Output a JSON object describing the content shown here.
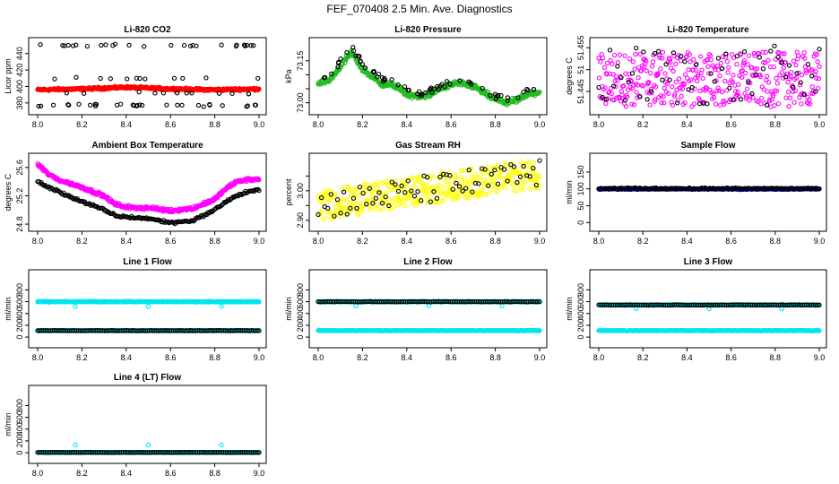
{
  "page_title": "FEF_070408  2.5 Min. Ave. Diagnostics",
  "colors": {
    "black": "#000000",
    "red": "#ff0000",
    "green": "#22bb22",
    "magenta": "#ff00ff",
    "yellow": "#ffff00",
    "blue": "#0000cc",
    "cyan": "#00e5ee"
  },
  "chart_data": [
    {
      "type": "scatter",
      "title": "Li-820 CO2",
      "ylabel": "Licor ppm",
      "xlim": [
        8.0,
        9.0
      ],
      "x_ticks": [
        "8.0",
        "8.2",
        "8.4",
        "8.6",
        "8.8",
        "9.0"
      ],
      "ylim": [
        370,
        455
      ],
      "y_ticks": [
        380,
        400,
        420,
        440
      ],
      "series": [
        {
          "color": "red",
          "pattern": "dense_smooth",
          "n": 420,
          "level": 397,
          "noise": 1.2,
          "points": [
            [
              8.0,
              396
            ],
            [
              8.2,
              397
            ],
            [
              8.4,
              399
            ],
            [
              8.6,
              397
            ],
            [
              8.8,
              396
            ],
            [
              9.0,
              397
            ]
          ]
        },
        {
          "color": "black",
          "pattern": "sparse_bands",
          "n": 80,
          "bands": [
            377,
            392,
            410,
            450
          ],
          "band_weights": [
            0.3,
            0.2,
            0.2,
            0.3
          ]
        }
      ]
    },
    {
      "type": "scatter",
      "title": "Li-820 Pressure",
      "ylabel": "kPa",
      "xlim": [
        8.0,
        9.0
      ],
      "x_ticks": [
        "8.0",
        "8.2",
        "8.4",
        "8.6",
        "8.8",
        "9.0"
      ],
      "ylim": [
        72.97,
        73.22
      ],
      "y_ticks": [
        73.0,
        73.05,
        73.1,
        73.15
      ],
      "y_tick_labels": [
        "73.00",
        "",
        "",
        "73.15"
      ],
      "series": [
        {
          "color": "green",
          "pattern": "dense_smooth",
          "n": 400,
          "noise": 0.008,
          "points": [
            [
              8.0,
              73.07
            ],
            [
              8.05,
              73.08
            ],
            [
              8.1,
              73.13
            ],
            [
              8.15,
              73.18
            ],
            [
              8.2,
              73.12
            ],
            [
              8.28,
              73.07
            ],
            [
              8.35,
              73.06
            ],
            [
              8.4,
              73.03
            ],
            [
              8.45,
              73.02
            ],
            [
              8.5,
              73.03
            ],
            [
              8.55,
              73.05
            ],
            [
              8.62,
              73.07
            ],
            [
              8.7,
              73.06
            ],
            [
              8.78,
              73.02
            ],
            [
              8.85,
              73.0
            ],
            [
              8.9,
              73.01
            ],
            [
              8.95,
              73.03
            ],
            [
              9.0,
              73.04
            ]
          ]
        },
        {
          "color": "black",
          "pattern": "sparse_follow",
          "n": 70,
          "noise": 0.01,
          "points": [
            [
              8.0,
              73.09
            ],
            [
              8.05,
              73.1
            ],
            [
              8.1,
              73.15
            ],
            [
              8.15,
              73.2
            ],
            [
              8.2,
              73.14
            ],
            [
              8.28,
              73.09
            ],
            [
              8.35,
              73.07
            ],
            [
              8.4,
              73.05
            ],
            [
              8.45,
              73.03
            ],
            [
              8.5,
              73.04
            ],
            [
              8.55,
              73.06
            ],
            [
              8.62,
              73.08
            ],
            [
              8.7,
              73.07
            ],
            [
              8.78,
              73.03
            ],
            [
              8.85,
              73.01
            ],
            [
              8.9,
              73.02
            ],
            [
              8.95,
              73.04
            ],
            [
              9.0,
              73.05
            ]
          ]
        }
      ]
    },
    {
      "type": "scatter",
      "title": "Li-820 Temperature",
      "ylabel": "degrees C",
      "xlim": [
        8.0,
        9.0
      ],
      "x_ticks": [
        "8.0",
        "8.2",
        "8.4",
        "8.6",
        "8.8",
        "9.0"
      ],
      "ylim": [
        51.4405,
        51.4565
      ],
      "y_ticks": [
        51.445,
        51.45,
        51.455
      ],
      "y_tick_labels": [
        "51.445",
        "51",
        "51.455"
      ],
      "series": [
        {
          "color": "magenta",
          "pattern": "band",
          "n": 380,
          "low": 51.4415,
          "high": 51.454
        },
        {
          "color": "black",
          "pattern": "band",
          "n": 60,
          "low": 51.4415,
          "high": 51.4555
        }
      ]
    },
    {
      "type": "scatter",
      "title": "Ambient Box Temperature",
      "ylabel": "degrees C",
      "xlim": [
        8.0,
        9.0
      ],
      "x_ticks": [
        "8.0",
        "8.2",
        "8.4",
        "8.6",
        "8.8",
        "9.0"
      ],
      "ylim": [
        24.75,
        25.75
      ],
      "y_ticks": [
        24.8,
        25.2,
        25.6
      ],
      "series": [
        {
          "color": "magenta",
          "pattern": "dense_smooth",
          "n": 380,
          "noise": 0.02,
          "points": [
            [
              8.0,
              25.65
            ],
            [
              8.05,
              25.5
            ],
            [
              8.1,
              25.42
            ],
            [
              8.2,
              25.32
            ],
            [
              8.3,
              25.2
            ],
            [
              8.35,
              25.08
            ],
            [
              8.4,
              25.04
            ],
            [
              8.5,
              25.03
            ],
            [
              8.6,
              24.99
            ],
            [
              8.7,
              25.02
            ],
            [
              8.8,
              25.15
            ],
            [
              8.85,
              25.3
            ],
            [
              8.9,
              25.4
            ],
            [
              8.95,
              25.43
            ],
            [
              9.0,
              25.43
            ]
          ]
        },
        {
          "color": "black",
          "pattern": "dense_smooth",
          "n": 180,
          "noise": 0.015,
          "points": [
            [
              8.0,
              25.4
            ],
            [
              8.05,
              25.32
            ],
            [
              8.1,
              25.25
            ],
            [
              8.2,
              25.12
            ],
            [
              8.3,
              25.0
            ],
            [
              8.35,
              24.92
            ],
            [
              8.4,
              24.9
            ],
            [
              8.5,
              24.88
            ],
            [
              8.6,
              24.82
            ],
            [
              8.7,
              24.85
            ],
            [
              8.8,
              25.0
            ],
            [
              8.85,
              25.12
            ],
            [
              8.9,
              25.2
            ],
            [
              8.95,
              25.26
            ],
            [
              9.0,
              25.28
            ]
          ]
        }
      ]
    },
    {
      "type": "scatter",
      "title": "Gas Stream RH",
      "ylabel": "percent",
      "xlim": [
        8.0,
        9.0
      ],
      "x_ticks": [
        "8.0",
        "8.2",
        "8.4",
        "8.6",
        "8.8",
        "9.0"
      ],
      "ylim": [
        2.875,
        3.115
      ],
      "y_ticks": [
        2.9,
        2.95,
        3.0,
        3.05
      ],
      "y_tick_labels": [
        "2.90",
        "",
        "3.00",
        ""
      ],
      "series": [
        {
          "color": "yellow",
          "pattern": "band_trend",
          "n": 420,
          "spread": 0.05,
          "points": [
            [
              8.0,
              2.95
            ],
            [
              9.0,
              3.06
            ]
          ]
        },
        {
          "color": "black",
          "pattern": "band_trend",
          "n": 70,
          "spread": 0.05,
          "points": [
            [
              8.0,
              2.95
            ],
            [
              9.0,
              3.06
            ]
          ]
        }
      ]
    },
    {
      "type": "scatter",
      "title": "Sample Flow",
      "ylabel": "ml/min",
      "xlim": [
        8.0,
        9.0
      ],
      "x_ticks": [
        "8.0",
        "8.2",
        "8.4",
        "8.6",
        "8.8",
        "9.0"
      ],
      "ylim": [
        -15,
        195
      ],
      "y_ticks": [
        0,
        50,
        100,
        150
      ],
      "series": [
        {
          "color": "blue",
          "pattern": "flat",
          "n": 420,
          "level": 100,
          "noise": 1.5
        },
        {
          "color": "black",
          "pattern": "flat",
          "n": 140,
          "level": 101,
          "noise": 2
        }
      ]
    },
    {
      "type": "scatter",
      "title": "Line 1 Flow",
      "ylabel": "ml/min",
      "xlim": [
        8.0,
        9.0
      ],
      "x_ticks": [
        "8.0",
        "8.2",
        "8.4",
        "8.6",
        "8.8",
        "9.0"
      ],
      "ylim": [
        -120,
        1080
      ],
      "y_ticks": [
        0,
        200,
        400,
        600,
        800
      ],
      "series": [
        {
          "color": "cyan",
          "pattern": "flat",
          "n": 400,
          "level": 600,
          "noise": 6,
          "spikes": [
            [
              8.17,
              520
            ],
            [
              8.5,
              520
            ],
            [
              8.83,
              520
            ]
          ]
        },
        {
          "color": "cyan",
          "pattern": "flat",
          "n": 400,
          "level": 110,
          "noise": 4
        },
        {
          "color": "black",
          "pattern": "flat",
          "n": 120,
          "level": 110,
          "noise": 3
        }
      ]
    },
    {
      "type": "scatter",
      "title": "Line 2 Flow",
      "ylabel": "ml/min",
      "xlim": [
        8.0,
        9.0
      ],
      "x_ticks": [
        "8.0",
        "8.2",
        "8.4",
        "8.6",
        "8.8",
        "9.0"
      ],
      "ylim": [
        -120,
        1080
      ],
      "y_ticks": [
        0,
        200,
        400,
        600,
        800
      ],
      "series": [
        {
          "color": "cyan",
          "pattern": "flat",
          "n": 400,
          "level": 600,
          "noise": 6,
          "spikes": [
            [
              8.17,
              530
            ],
            [
              8.5,
              530
            ],
            [
              8.83,
              530
            ]
          ]
        },
        {
          "color": "black",
          "pattern": "flat",
          "n": 120,
          "level": 600,
          "noise": 4
        },
        {
          "color": "cyan",
          "pattern": "flat",
          "n": 400,
          "level": 110,
          "noise": 4
        }
      ]
    },
    {
      "type": "scatter",
      "title": "Line 3 Flow",
      "ylabel": "ml/min",
      "xlim": [
        8.0,
        9.0
      ],
      "x_ticks": [
        "8.0",
        "8.2",
        "8.4",
        "8.6",
        "8.8",
        "9.0"
      ],
      "ylim": [
        -120,
        1080
      ],
      "y_ticks": [
        0,
        200,
        400,
        600,
        800
      ],
      "series": [
        {
          "color": "cyan",
          "pattern": "flat",
          "n": 400,
          "level": 545,
          "noise": 6,
          "spikes": [
            [
              8.17,
              480
            ],
            [
              8.5,
              480
            ],
            [
              8.83,
              480
            ]
          ]
        },
        {
          "color": "black",
          "pattern": "flat",
          "n": 120,
          "level": 545,
          "noise": 4
        },
        {
          "color": "cyan",
          "pattern": "flat",
          "n": 400,
          "level": 110,
          "noise": 4
        }
      ]
    },
    {
      "type": "scatter",
      "title": "Line 4 (LT) Flow",
      "ylabel": "ml/min",
      "xlim": [
        8.0,
        9.0
      ],
      "x_ticks": [
        "8.0",
        "8.2",
        "8.4",
        "8.6",
        "8.8",
        "9.0"
      ],
      "ylim": [
        -120,
        1080
      ],
      "y_ticks": [
        0,
        200,
        400,
        600,
        800
      ],
      "series": [
        {
          "color": "cyan",
          "pattern": "flat",
          "n": 400,
          "level": 5,
          "noise": 3,
          "spikes": [
            [
              8.17,
              130
            ],
            [
              8.5,
              130
            ],
            [
              8.83,
              130
            ]
          ]
        },
        {
          "color": "black",
          "pattern": "flat",
          "n": 120,
          "level": 5,
          "noise": 2
        }
      ]
    }
  ]
}
